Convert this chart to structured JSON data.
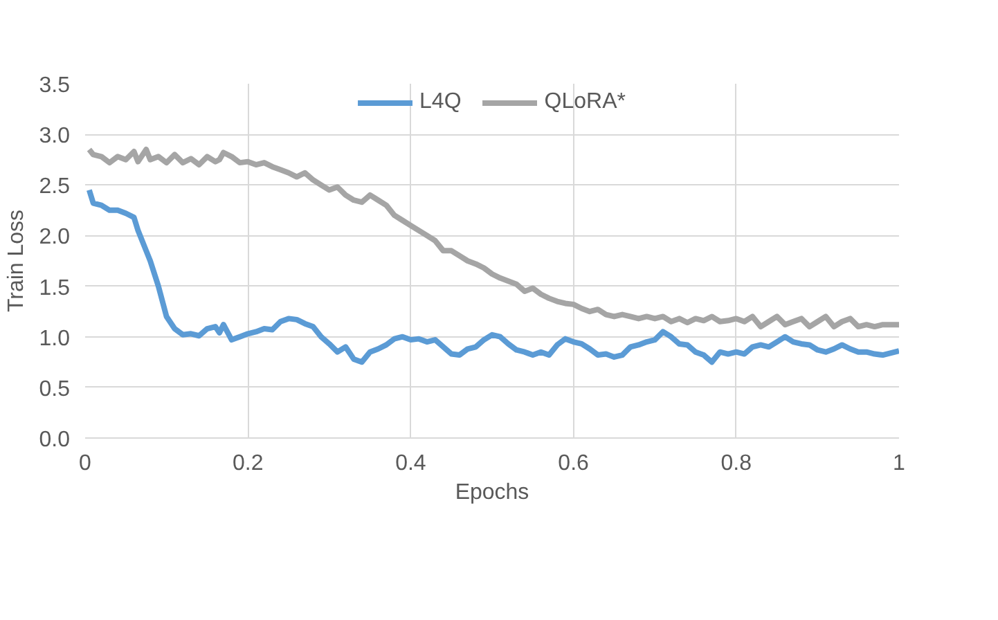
{
  "chart_data": {
    "type": "line",
    "xlabel": "Epochs",
    "ylabel": "Train Loss",
    "x": [
      0.005,
      0.01,
      0.02,
      0.03,
      0.04,
      0.05,
      0.06,
      0.065,
      0.075,
      0.08,
      0.09,
      0.1,
      0.11,
      0.12,
      0.13,
      0.14,
      0.15,
      0.16,
      0.165,
      0.17,
      0.18,
      0.19,
      0.2,
      0.21,
      0.22,
      0.23,
      0.24,
      0.25,
      0.26,
      0.27,
      0.28,
      0.29,
      0.3,
      0.31,
      0.32,
      0.33,
      0.34,
      0.35,
      0.36,
      0.37,
      0.38,
      0.39,
      0.4,
      0.41,
      0.42,
      0.43,
      0.44,
      0.45,
      0.46,
      0.47,
      0.48,
      0.49,
      0.5,
      0.51,
      0.52,
      0.53,
      0.54,
      0.55,
      0.56,
      0.57,
      0.58,
      0.59,
      0.6,
      0.61,
      0.62,
      0.63,
      0.64,
      0.65,
      0.66,
      0.67,
      0.68,
      0.69,
      0.7,
      0.71,
      0.72,
      0.73,
      0.74,
      0.75,
      0.76,
      0.77,
      0.78,
      0.79,
      0.8,
      0.81,
      0.82,
      0.83,
      0.84,
      0.85,
      0.86,
      0.87,
      0.88,
      0.89,
      0.9,
      0.91,
      0.92,
      0.93,
      0.94,
      0.95,
      0.96,
      0.97,
      0.98,
      1.0
    ],
    "series": [
      {
        "name": "L4Q",
        "color": "#5b9bd5",
        "values": [
          2.45,
          2.32,
          2.3,
          2.25,
          2.25,
          2.22,
          2.18,
          2.05,
          1.85,
          1.75,
          1.5,
          1.2,
          1.08,
          1.02,
          1.03,
          1.01,
          1.08,
          1.1,
          1.04,
          1.12,
          0.97,
          1.0,
          1.03,
          1.05,
          1.08,
          1.07,
          1.15,
          1.18,
          1.17,
          1.13,
          1.1,
          1.0,
          0.93,
          0.85,
          0.9,
          0.78,
          0.75,
          0.85,
          0.88,
          0.92,
          0.98,
          1.0,
          0.97,
          0.98,
          0.95,
          0.97,
          0.9,
          0.83,
          0.82,
          0.88,
          0.9,
          0.97,
          1.02,
          1.0,
          0.93,
          0.87,
          0.85,
          0.82,
          0.85,
          0.82,
          0.92,
          0.98,
          0.95,
          0.93,
          0.88,
          0.82,
          0.83,
          0.8,
          0.82,
          0.9,
          0.92,
          0.95,
          0.97,
          1.05,
          1.0,
          0.93,
          0.92,
          0.85,
          0.82,
          0.75,
          0.85,
          0.83,
          0.85,
          0.83,
          0.9,
          0.92,
          0.9,
          0.95,
          1.0,
          0.95,
          0.93,
          0.92,
          0.87,
          0.85,
          0.88,
          0.92,
          0.88,
          0.85,
          0.85,
          0.83,
          0.82,
          0.86
        ]
      },
      {
        "name": "QLoRA*",
        "color": "#a5a5a5",
        "values": [
          2.85,
          2.8,
          2.78,
          2.72,
          2.78,
          2.75,
          2.83,
          2.73,
          2.85,
          2.75,
          2.78,
          2.72,
          2.8,
          2.72,
          2.76,
          2.7,
          2.78,
          2.73,
          2.75,
          2.82,
          2.78,
          2.72,
          2.73,
          2.7,
          2.72,
          2.68,
          2.65,
          2.62,
          2.58,
          2.62,
          2.55,
          2.5,
          2.45,
          2.48,
          2.4,
          2.35,
          2.33,
          2.4,
          2.35,
          2.3,
          2.2,
          2.15,
          2.1,
          2.05,
          2.0,
          1.95,
          1.85,
          1.85,
          1.8,
          1.75,
          1.72,
          1.68,
          1.62,
          1.58,
          1.55,
          1.52,
          1.45,
          1.48,
          1.42,
          1.38,
          1.35,
          1.33,
          1.32,
          1.28,
          1.25,
          1.27,
          1.22,
          1.2,
          1.22,
          1.2,
          1.18,
          1.2,
          1.18,
          1.2,
          1.15,
          1.18,
          1.14,
          1.18,
          1.16,
          1.2,
          1.15,
          1.16,
          1.18,
          1.15,
          1.2,
          1.1,
          1.15,
          1.2,
          1.12,
          1.15,
          1.18,
          1.1,
          1.15,
          1.2,
          1.1,
          1.15,
          1.18,
          1.1,
          1.12,
          1.1,
          1.12,
          1.12
        ]
      }
    ],
    "xlim": [
      0,
      1
    ],
    "xticks": [
      0,
      0.2,
      0.4,
      0.6,
      0.8,
      1
    ],
    "ylim": [
      0,
      3.5
    ],
    "yticks": [
      {
        "value": 0,
        "label": "0.0"
      },
      {
        "value": 0.5,
        "label": "0.5"
      },
      {
        "value": 1,
        "label": "1.0"
      },
      {
        "value": 1.5,
        "label": "1.5"
      },
      {
        "value": 2,
        "label": "2.0"
      },
      {
        "value": 2.5,
        "label": "2.5"
      },
      {
        "value": 3,
        "label": "3.0"
      },
      {
        "value": 3.5,
        "label": "3.5"
      }
    ],
    "grid": true,
    "legend": "top",
    "marker": "none",
    "line_style": "solid"
  }
}
